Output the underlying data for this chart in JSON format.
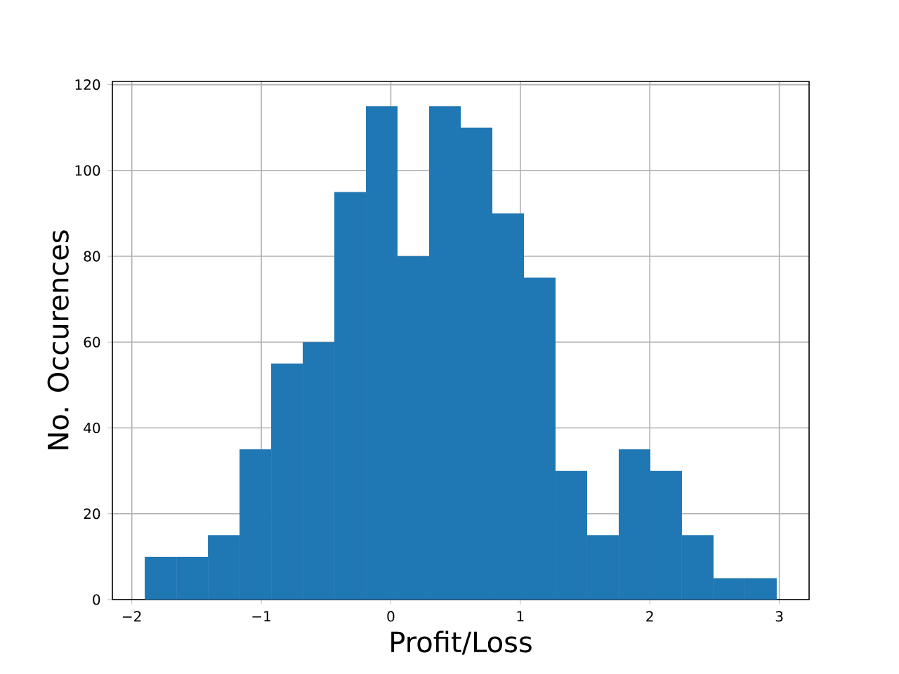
{
  "chart_data": {
    "type": "histogram",
    "xlabel": "Profit/Loss",
    "ylabel": "No. Occurences",
    "bins": [
      -1.9,
      -1.656,
      -1.412,
      -1.168,
      -0.924,
      -0.68,
      -0.436,
      -0.192,
      0.052,
      0.296,
      0.54,
      0.784,
      1.028,
      1.272,
      1.516,
      1.76,
      2.004,
      2.248,
      2.492,
      2.736,
      2.98
    ],
    "values": [
      10,
      10,
      15,
      35,
      55,
      60,
      95,
      115,
      80,
      115,
      110,
      90,
      75,
      30,
      15,
      35,
      30,
      15,
      5,
      5
    ],
    "color": "#1f77b4",
    "xlim": [
      -2.15,
      3.23
    ],
    "ylim": [
      0,
      120.75
    ],
    "xticks": [
      {
        "value": -2,
        "label": "−2"
      },
      {
        "value": -1,
        "label": "−1"
      },
      0,
      1,
      2,
      3
    ],
    "yticks": [
      0,
      20,
      40,
      60,
      80,
      100,
      120
    ],
    "grid": true
  }
}
